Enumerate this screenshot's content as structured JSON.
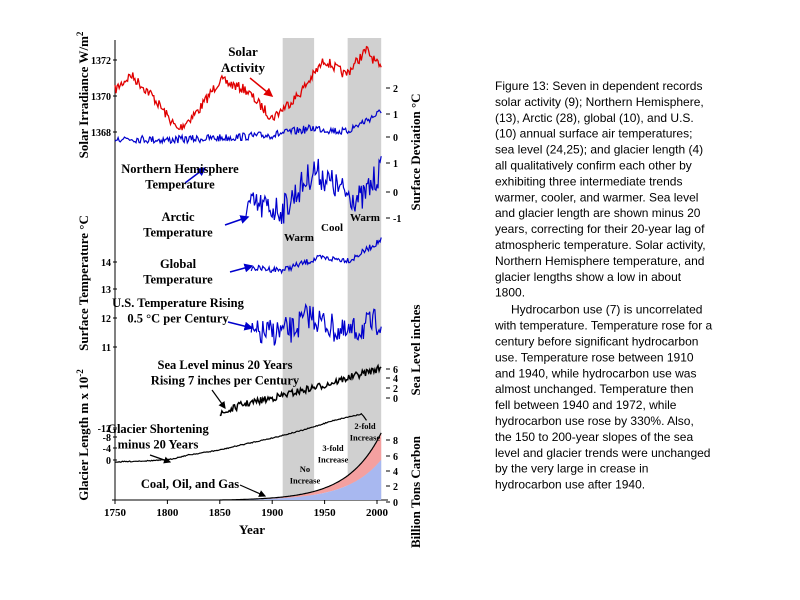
{
  "figure": {
    "x_axis": {
      "label": "Year",
      "ticks": [
        "1750",
        "1800",
        "1850",
        "1900",
        "1950",
        "2000"
      ]
    },
    "left_axes": [
      {
        "label": "Solar Irradiance W/m",
        "sup": "2",
        "ticks": [
          "1372",
          "1370",
          "1368"
        ]
      },
      {
        "label": "Surface Temperature °C",
        "ticks": [
          "14",
          "13",
          "12",
          "11"
        ]
      },
      {
        "label": "Glacier Length m x 10",
        "sup": "-2",
        "ticks": [
          "-12",
          "-8",
          "-4",
          "0"
        ]
      }
    ],
    "right_axes": [
      {
        "label": "Surface Deviation °C",
        "ticks": [
          "2",
          "1",
          "0",
          "1",
          "0",
          "-1"
        ]
      },
      {
        "label": "Sea Level inches",
        "ticks": [
          "6",
          "4",
          "2",
          "0"
        ]
      },
      {
        "label": "Billion Tons Carbon",
        "ticks": [
          "8",
          "6",
          "4",
          "2",
          "0"
        ]
      }
    ],
    "annotations": [
      [
        "Solar",
        "Activity"
      ],
      [
        "Northern Hemisphere",
        "Temperature"
      ],
      [
        "Arctic",
        "Temperature"
      ],
      [
        "Global",
        "Temperature"
      ],
      [
        "U.S. Temperature Rising",
        "0.5 °C per Century"
      ],
      [
        "Sea Level minus 20 Years",
        "Rising 7 inches per Century"
      ],
      [
        "Glacier Shortening",
        "minus 20 Years"
      ],
      [
        "Coal, Oil, and Gas"
      ],
      [
        "Warm"
      ],
      [
        "Cool"
      ],
      [
        "Warm"
      ],
      [
        "No",
        "Increase"
      ],
      [
        "3-fold",
        "Increase"
      ],
      [
        "2-fold",
        "Increase"
      ]
    ]
  },
  "caption": {
    "paragraphs": [
      [
        "Figure 13: Seven in dependent records",
        "solar activity (9); Northern Hemisphere,",
        "(13), Arctic (28), global (10), and U.S.",
        "(10) annual surface air temperatures;",
        "sea level (24,25); and glacier length (4)",
        "all qualitatively confirm each other by",
        "exhibiting three intermediate trends",
        "warmer, cooler, and warmer. Sea level",
        "and glacier length are shown minus 20",
        "years, correcting for their 20-year lag of",
        "atmospheric temperature. Solar activity,",
        "Northern Hemisphere temperature, and",
        "glacier lengths show a low in about",
        "1800."
      ],
      [
        "Hydrocarbon use (7) is uncorrelated",
        "with temperature. Temperature rose for a",
        "century before significant hydrocarbon",
        "use. Temperature rose between 1910",
        "and 1940, while hydrocarbon use was",
        "almost unchanged. Temperature then",
        "fell between 1940 and 1972, while",
        "hydrocarbon use rose by 330%. Also,",
        "the 150 to 200-year slopes of the sea",
        "level and glacier trends were unchanged",
        "by the very large in crease in",
        "hydrocarbon use after 1940."
      ]
    ]
  }
}
